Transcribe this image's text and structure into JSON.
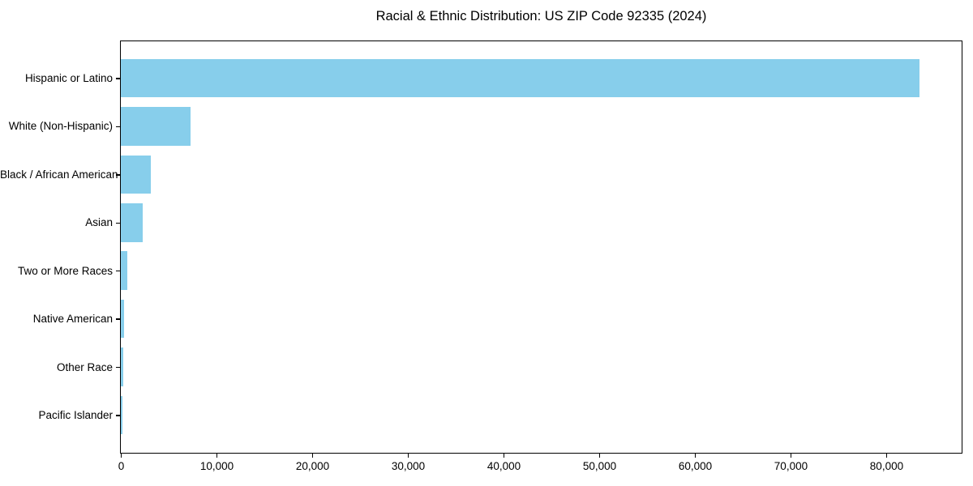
{
  "figure": {
    "background": "#ffffff"
  },
  "chart_data": {
    "type": "bar",
    "orientation": "horizontal",
    "title": "Racial & Ethnic Distribution: US ZIP Code 92335 (2024)",
    "categories": [
      "Hispanic or Latino",
      "White (Non-Hispanic)",
      "Black / African American",
      "Asian",
      "Two or More Races",
      "Native American",
      "Other Race",
      "Pacific Islander"
    ],
    "values": [
      83500,
      7250,
      3100,
      2250,
      680,
      310,
      290,
      150
    ],
    "xlabel": "",
    "ylabel": "",
    "xlim": [
      0,
      87800
    ],
    "xticks": [
      {
        "value": 0,
        "label": "0"
      },
      {
        "value": 10000,
        "label": "10,000"
      },
      {
        "value": 20000,
        "label": "20,000"
      },
      {
        "value": 30000,
        "label": "30,000"
      },
      {
        "value": 40000,
        "label": "40,000"
      },
      {
        "value": 50000,
        "label": "50,000"
      },
      {
        "value": 60000,
        "label": "60,000"
      },
      {
        "value": 70000,
        "label": "70,000"
      },
      {
        "value": 80000,
        "label": "80,000"
      }
    ],
    "grid": false,
    "legend": null,
    "bar_color": "#87ceeb",
    "axis_color": "#000000",
    "text_color": "#000000"
  }
}
